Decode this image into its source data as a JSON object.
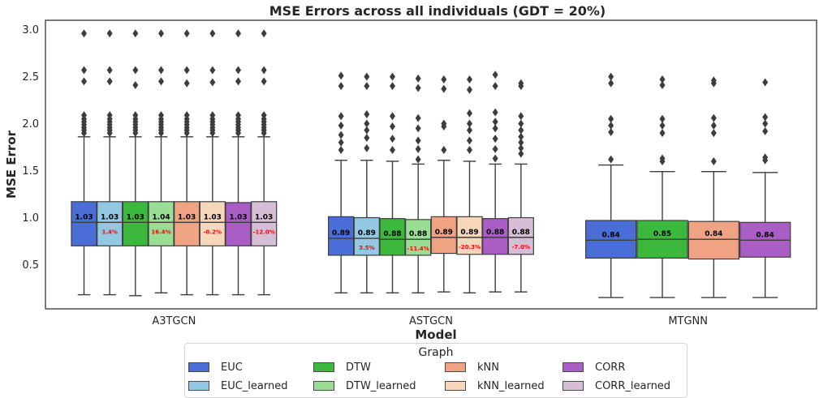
{
  "chart_data": {
    "type": "box",
    "title": "MSE Errors across all individuals (GDT = 20%)",
    "xlabel": "Model",
    "ylabel": "MSE Error",
    "ylim": [
      0.03,
      3.1
    ],
    "yticks": [
      0.5,
      1.0,
      1.5,
      2.0,
      2.5,
      3.0
    ],
    "ytick_labels": [
      "0.5",
      "1.0",
      "1.5",
      "2.0",
      "2.5",
      "3.0"
    ],
    "categories": [
      "A3TGCN",
      "ASTGCN",
      "MTGNN"
    ],
    "legend_title": "Graph",
    "legend_placement": "bottom-center",
    "series": [
      {
        "name": "EUC",
        "color": "#4a6ed6"
      },
      {
        "name": "EUC_learned",
        "color": "#93c8e2"
      },
      {
        "name": "DTW",
        "color": "#3cb83c"
      },
      {
        "name": "DTW_learned",
        "color": "#99de94"
      },
      {
        "name": "kNN",
        "color": "#f0a383"
      },
      {
        "name": "kNN_learned",
        "color": "#f7d7bc"
      },
      {
        "name": "CORR",
        "color": "#ab5dc6"
      },
      {
        "name": "CORR_learned",
        "color": "#d5bed6"
      }
    ],
    "groups": [
      {
        "model": "A3TGCN",
        "boxes": [
          {
            "graph": "EUC",
            "whisker_low": 0.18,
            "q1": 0.7,
            "median": 0.95,
            "q3": 1.17,
            "whisker_high": 1.86,
            "mean_label": "1.03",
            "pct_label": "",
            "outliers": [
              1.9,
              1.93,
              1.96,
              1.99,
              2.02,
              2.05,
              2.09,
              2.45,
              2.57,
              2.96
            ]
          },
          {
            "graph": "EUC_learned",
            "whisker_low": 0.18,
            "q1": 0.7,
            "median": 0.95,
            "q3": 1.17,
            "whisker_high": 1.86,
            "mean_label": "1.03",
            "pct_label": "1.4%",
            "outliers": [
              1.9,
              1.93,
              1.96,
              1.99,
              2.02,
              2.05,
              2.09,
              2.45,
              2.57,
              2.96
            ]
          },
          {
            "graph": "DTW",
            "whisker_low": 0.17,
            "q1": 0.7,
            "median": 0.95,
            "q3": 1.17,
            "whisker_high": 1.86,
            "mean_label": "1.03",
            "pct_label": "",
            "outliers": [
              1.9,
              1.93,
              1.96,
              1.99,
              2.02,
              2.05,
              2.09,
              2.41,
              2.57,
              2.96
            ]
          },
          {
            "graph": "DTW_learned",
            "whisker_low": 0.2,
            "q1": 0.7,
            "median": 0.95,
            "q3": 1.17,
            "whisker_high": 1.86,
            "mean_label": "1.04",
            "pct_label": "16.4%",
            "outliers": [
              1.9,
              1.93,
              1.96,
              1.99,
              2.02,
              2.05,
              2.09,
              2.45,
              2.57,
              2.96
            ]
          },
          {
            "graph": "kNN",
            "whisker_low": 0.18,
            "q1": 0.7,
            "median": 0.95,
            "q3": 1.17,
            "whisker_high": 1.86,
            "mean_label": "1.03",
            "pct_label": "",
            "outliers": [
              1.9,
              1.93,
              1.96,
              1.99,
              2.02,
              2.05,
              2.09,
              2.43,
              2.57,
              2.96
            ]
          },
          {
            "graph": "kNN_learned",
            "whisker_low": 0.18,
            "q1": 0.7,
            "median": 0.95,
            "q3": 1.17,
            "whisker_high": 1.86,
            "mean_label": "1.03",
            "pct_label": "-0.2%",
            "outliers": [
              1.9,
              1.93,
              1.96,
              1.99,
              2.02,
              2.05,
              2.09,
              2.44,
              2.57,
              2.96
            ]
          },
          {
            "graph": "CORR",
            "whisker_low": 0.18,
            "q1": 0.7,
            "median": 0.95,
            "q3": 1.16,
            "whisker_high": 1.86,
            "mean_label": "1.03",
            "pct_label": "",
            "outliers": [
              1.9,
              1.93,
              1.96,
              1.99,
              2.02,
              2.05,
              2.09,
              2.45,
              2.57,
              2.96
            ]
          },
          {
            "graph": "CORR_learned",
            "whisker_low": 0.18,
            "q1": 0.7,
            "median": 0.95,
            "q3": 1.17,
            "whisker_high": 1.86,
            "mean_label": "1.03",
            "pct_label": "-12.0%",
            "outliers": [
              1.9,
              1.93,
              1.96,
              1.99,
              2.02,
              2.05,
              2.09,
              2.45,
              2.57,
              2.96
            ]
          }
        ]
      },
      {
        "model": "ASTGCN",
        "boxes": [
          {
            "graph": "EUC",
            "whisker_low": 0.2,
            "q1": 0.6,
            "median": 0.78,
            "q3": 1.01,
            "whisker_high": 1.61,
            "mean_label": "0.89",
            "pct_label": "",
            "outliers": [
              1.72,
              1.8,
              1.88,
              1.98,
              2.08,
              2.4,
              2.51
            ]
          },
          {
            "graph": "EUC_learned",
            "whisker_low": 0.2,
            "q1": 0.6,
            "median": 0.78,
            "q3": 1.0,
            "whisker_high": 1.61,
            "mean_label": "0.89",
            "pct_label": "3.5%",
            "outliers": [
              1.74,
              1.85,
              1.93,
              2.0,
              2.1,
              2.4,
              2.5
            ]
          },
          {
            "graph": "DTW",
            "whisker_low": 0.2,
            "q1": 0.6,
            "median": 0.77,
            "q3": 0.99,
            "whisker_high": 1.6,
            "mean_label": "0.88",
            "pct_label": "",
            "outliers": [
              1.72,
              1.84,
              1.97,
              2.08,
              2.4,
              2.5
            ]
          },
          {
            "graph": "DTW_learned",
            "whisker_low": 0.2,
            "q1": 0.6,
            "median": 0.77,
            "q3": 0.98,
            "whisker_high": 1.57,
            "mean_label": "0.88",
            "pct_label": "-11.4%",
            "outliers": [
              1.62,
              1.73,
              1.82,
              1.95,
              2.06,
              2.38,
              2.48
            ]
          },
          {
            "graph": "kNN",
            "whisker_low": 0.21,
            "q1": 0.62,
            "median": 0.79,
            "q3": 1.01,
            "whisker_high": 1.61,
            "mean_label": "0.89",
            "pct_label": "",
            "outliers": [
              1.72,
              1.97,
              2.0,
              2.37,
              2.47
            ]
          },
          {
            "graph": "kNN_learned",
            "whisker_low": 0.2,
            "q1": 0.61,
            "median": 0.79,
            "q3": 1.01,
            "whisker_high": 1.6,
            "mean_label": "0.89",
            "pct_label": "-20.3%",
            "outliers": [
              1.72,
              1.82,
              1.93,
              2.0,
              2.11,
              2.36,
              2.47
            ]
          },
          {
            "graph": "CORR",
            "whisker_low": 0.21,
            "q1": 0.61,
            "median": 0.79,
            "q3": 0.99,
            "whisker_high": 1.57,
            "mean_label": "0.88",
            "pct_label": "",
            "outliers": [
              1.63,
              1.73,
              1.84,
              1.95,
              2.02,
              2.12,
              2.4,
              2.52
            ]
          },
          {
            "graph": "CORR_learned",
            "whisker_low": 0.21,
            "q1": 0.61,
            "median": 0.79,
            "q3": 1.0,
            "whisker_high": 1.57,
            "mean_label": "0.88",
            "pct_label": "-7.0%",
            "outliers": [
              1.68,
              1.74,
              1.8,
              1.86,
              1.93,
              2.0,
              2.08,
              2.4,
              2.43
            ]
          }
        ]
      },
      {
        "model": "MTGNN",
        "boxes": [
          {
            "graph": "EUC",
            "whisker_low": 0.15,
            "q1": 0.57,
            "median": 0.76,
            "q3": 0.97,
            "whisker_high": 1.56,
            "mean_label": "0.84",
            "pct_label": "",
            "outliers": [
              1.62,
              1.91,
              1.98,
              2.05,
              2.43,
              2.5
            ]
          },
          {
            "graph": "DTW",
            "whisker_low": 0.15,
            "q1": 0.57,
            "median": 0.77,
            "q3": 0.97,
            "whisker_high": 1.49,
            "mean_label": "0.85",
            "pct_label": "",
            "outliers": [
              1.6,
              1.63,
              1.9,
              1.98,
              2.05,
              2.41,
              2.47
            ]
          },
          {
            "graph": "kNN",
            "whisker_low": 0.15,
            "q1": 0.56,
            "median": 0.77,
            "q3": 0.96,
            "whisker_high": 1.49,
            "mean_label": "0.84",
            "pct_label": "",
            "outliers": [
              1.6,
              1.9,
              1.98,
              2.06,
              2.43,
              2.46
            ]
          },
          {
            "graph": "CORR",
            "whisker_low": 0.15,
            "q1": 0.58,
            "median": 0.76,
            "q3": 0.95,
            "whisker_high": 1.48,
            "mean_label": "0.84",
            "pct_label": "",
            "outliers": [
              1.61,
              1.64,
              1.92,
              2.0,
              2.07,
              2.44
            ]
          }
        ]
      }
    ]
  }
}
